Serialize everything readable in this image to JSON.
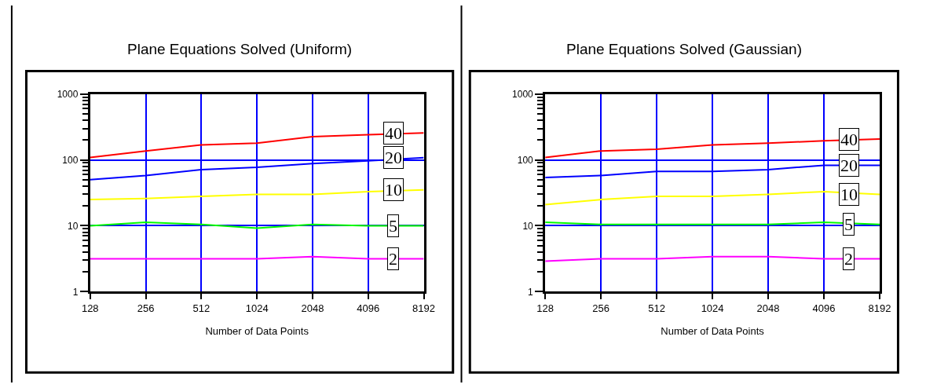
{
  "chart_data": [
    {
      "type": "line",
      "title": "Plane Equations Solved (Uniform)",
      "xlabel": "Number of Data Points",
      "categories": [
        "128",
        "256",
        "512",
        "1024",
        "2048",
        "4096",
        "8192"
      ],
      "log": "y",
      "grid": true,
      "ylim": [
        1,
        1000
      ],
      "yticks": [
        1,
        {
          "value": 2,
          "label": null
        },
        {
          "value": 3,
          "label": null
        },
        {
          "value": 4,
          "label": null
        },
        {
          "value": 5,
          "label": null
        },
        {
          "value": 6,
          "label": null
        },
        {
          "value": 7,
          "label": null
        },
        {
          "value": 8,
          "label": null
        },
        {
          "value": 9,
          "label": null
        },
        10,
        {
          "value": 20,
          "label": null
        },
        {
          "value": 30,
          "label": null
        },
        {
          "value": 40,
          "label": null
        },
        {
          "value": 50,
          "label": null
        },
        {
          "value": 60,
          "label": null
        },
        {
          "value": 70,
          "label": null
        },
        {
          "value": 80,
          "label": null
        },
        {
          "value": 90,
          "label": null
        },
        100,
        {
          "value": 200,
          "label": null
        },
        {
          "value": 300,
          "label": null
        },
        {
          "value": 400,
          "label": null
        },
        {
          "value": 500,
          "label": null
        },
        {
          "value": 600,
          "label": null
        },
        {
          "value": 700,
          "label": null
        },
        {
          "value": 800,
          "label": null
        },
        {
          "value": 900,
          "label": null
        },
        1000
      ],
      "series": [
        {
          "name": "40",
          "color": "#ff0000",
          "values": [
            109,
            137,
            169,
            180,
            225,
            241,
            257
          ]
        },
        {
          "name": "20",
          "color": "#0000ff",
          "values": [
            50,
            58,
            71,
            77,
            88,
            97,
            108
          ]
        },
        {
          "name": "10",
          "color": "#ffff00",
          "values": [
            25,
            26,
            28,
            30,
            30,
            33,
            35
          ]
        },
        {
          "name": "5",
          "color": "#00ff00",
          "values": [
            10,
            11.3,
            10.5,
            9.2,
            10.5,
            10,
            10
          ]
        },
        {
          "name": "2",
          "color": "#ff00ff",
          "values": [
            3.15,
            3.15,
            3.15,
            3.15,
            3.4,
            3.15,
            3.15
          ]
        }
      ]
    },
    {
      "type": "line",
      "title": "Plane Equations Solved (Gaussian)",
      "xlabel": "Number of Data Points",
      "categories": [
        "128",
        "256",
        "512",
        "1024",
        "2048",
        "4096",
        "8192"
      ],
      "log": "y",
      "grid": true,
      "ylim": [
        1,
        1000
      ],
      "yticks": [
        1,
        {
          "value": 2,
          "label": null
        },
        {
          "value": 3,
          "label": null
        },
        {
          "value": 4,
          "label": null
        },
        {
          "value": 5,
          "label": null
        },
        {
          "value": 6,
          "label": null
        },
        {
          "value": 7,
          "label": null
        },
        {
          "value": 8,
          "label": null
        },
        {
          "value": 9,
          "label": null
        },
        10,
        {
          "value": 20,
          "label": null
        },
        {
          "value": 30,
          "label": null
        },
        {
          "value": 40,
          "label": null
        },
        {
          "value": 50,
          "label": null
        },
        {
          "value": 60,
          "label": null
        },
        {
          "value": 70,
          "label": null
        },
        {
          "value": 80,
          "label": null
        },
        {
          "value": 90,
          "label": null
        },
        100,
        {
          "value": 200,
          "label": null
        },
        {
          "value": 300,
          "label": null
        },
        {
          "value": 400,
          "label": null
        },
        {
          "value": 500,
          "label": null
        },
        {
          "value": 600,
          "label": null
        },
        {
          "value": 700,
          "label": null
        },
        {
          "value": 800,
          "label": null
        },
        {
          "value": 900,
          "label": null
        },
        1000
      ],
      "series": [
        {
          "name": "40",
          "color": "#ff0000",
          "values": [
            109,
            137,
            145,
            169,
            180,
            195,
            207
          ]
        },
        {
          "name": "20",
          "color": "#0000ff",
          "values": [
            54,
            58,
            67,
            67,
            71,
            83,
            83
          ]
        },
        {
          "name": "10",
          "color": "#ffff00",
          "values": [
            21,
            25,
            28,
            28,
            30,
            33,
            30
          ]
        },
        {
          "name": "5",
          "color": "#00ff00",
          "values": [
            11.3,
            10.5,
            10.5,
            10.5,
            10.5,
            11.3,
            10.5
          ]
        },
        {
          "name": "2",
          "color": "#ff00ff",
          "values": [
            2.9,
            3.15,
            3.15,
            3.4,
            3.4,
            3.15,
            3.15
          ]
        }
      ]
    }
  ]
}
